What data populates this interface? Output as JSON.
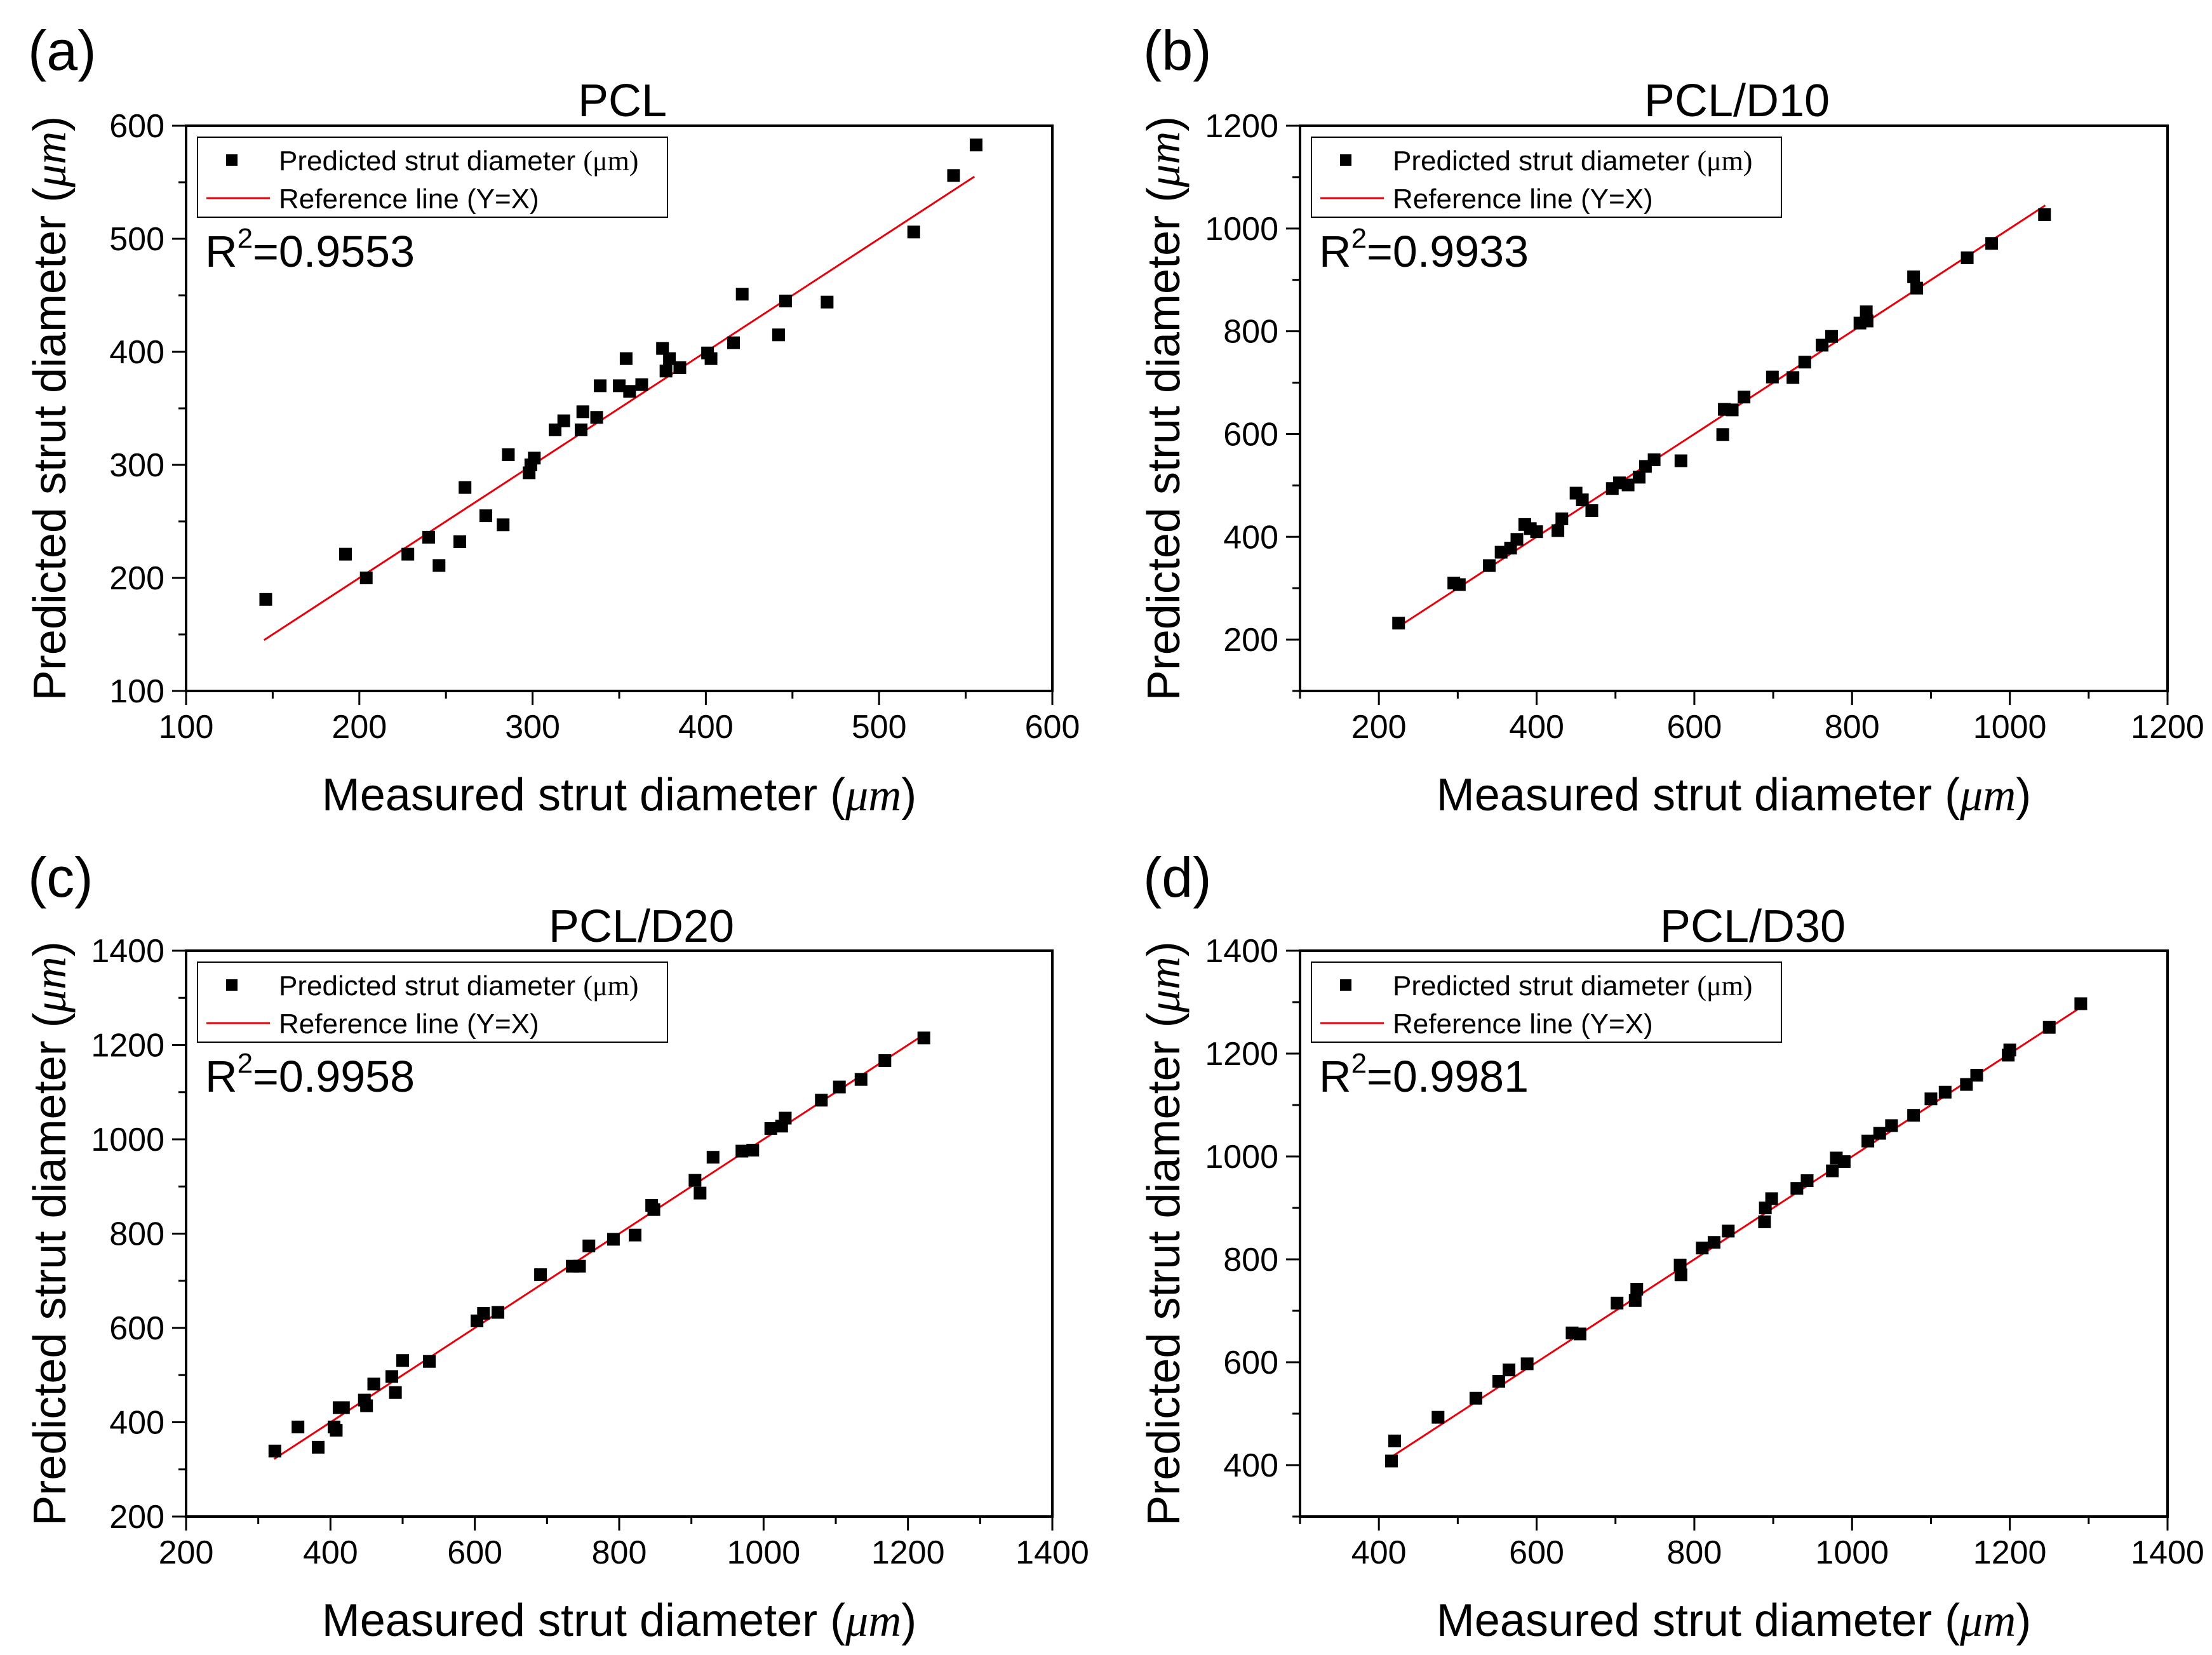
{
  "figure": {
    "colors": {
      "marker": "#000000",
      "reference_line": "#e8000b",
      "axes": "#000000",
      "background": "#ffffff"
    }
  },
  "chart_data": [
    {
      "type": "scatter",
      "panel_label": "(a)",
      "title": "PCL",
      "xlabel": "Measured strut diameter",
      "ylabel": "Predicted strut diameter",
      "unit": "μm",
      "xlim": [
        100,
        600
      ],
      "ylim": [
        100,
        600
      ],
      "xticks": [
        100,
        200,
        300,
        400,
        500,
        600
      ],
      "yticks": [
        100,
        200,
        300,
        400,
        500,
        600
      ],
      "reference_line": [
        145,
        555
      ],
      "legend": {
        "position": "top-left",
        "marker_label": "Predicted strut diameter",
        "marker_unit": "(μm)",
        "line_label": "Reference line (Y=X)"
      },
      "r2_prefix": "R",
      "r2_exp": "2",
      "r2_value": "=0.9553",
      "points": [
        [
          146,
          181
        ],
        [
          192,
          221
        ],
        [
          204,
          200
        ],
        [
          228,
          221
        ],
        [
          240,
          236
        ],
        [
          246,
          211
        ],
        [
          258,
          232
        ],
        [
          261,
          280
        ],
        [
          273,
          255
        ],
        [
          283,
          247
        ],
        [
          286,
          309
        ],
        [
          298,
          293
        ],
        [
          299,
          300
        ],
        [
          301,
          306
        ],
        [
          313,
          331
        ],
        [
          318,
          339
        ],
        [
          328,
          331
        ],
        [
          329,
          347
        ],
        [
          337,
          342
        ],
        [
          339,
          370
        ],
        [
          350,
          370
        ],
        [
          354,
          394
        ],
        [
          356,
          365
        ],
        [
          363,
          371
        ],
        [
          375,
          403
        ],
        [
          377,
          383
        ],
        [
          379,
          394
        ],
        [
          385,
          386
        ],
        [
          401,
          399
        ],
        [
          403,
          394
        ],
        [
          416,
          408
        ],
        [
          421,
          451
        ],
        [
          442,
          415
        ],
        [
          446,
          445
        ],
        [
          470,
          444
        ],
        [
          520,
          506
        ],
        [
          543,
          556
        ],
        [
          556,
          583
        ]
      ]
    },
    {
      "type": "scatter",
      "panel_label": "(b)",
      "title": "PCL/D10",
      "xlabel": "Measured strut diameter",
      "ylabel": "Predicted strut diameter",
      "unit": "μm",
      "xlim": [
        100,
        1200
      ],
      "ylim": [
        100,
        1200
      ],
      "xticks": [
        200,
        400,
        600,
        800,
        1000,
        1200
      ],
      "yticks": [
        200,
        400,
        600,
        800,
        1000,
        1200
      ],
      "reference_line": [
        222,
        1045
      ],
      "legend": {
        "position": "top-left",
        "marker_label": "Predicted strut diameter",
        "marker_unit": "(μm)",
        "line_label": "Reference line (Y=X)"
      },
      "r2_prefix": "R",
      "r2_exp": "2",
      "r2_value": "=0.9933",
      "points": [
        [
          225,
          232
        ],
        [
          295,
          310
        ],
        [
          302,
          307
        ],
        [
          340,
          344
        ],
        [
          355,
          370
        ],
        [
          367,
          378
        ],
        [
          375,
          395
        ],
        [
          385,
          424
        ],
        [
          392,
          416
        ],
        [
          400,
          410
        ],
        [
          427,
          412
        ],
        [
          432,
          435
        ],
        [
          450,
          485
        ],
        [
          458,
          472
        ],
        [
          470,
          451
        ],
        [
          496,
          494
        ],
        [
          505,
          505
        ],
        [
          516,
          501
        ],
        [
          530,
          516
        ],
        [
          538,
          537
        ],
        [
          549,
          550
        ],
        [
          583,
          548
        ],
        [
          636,
          599
        ],
        [
          638,
          648
        ],
        [
          648,
          647
        ],
        [
          663,
          672
        ],
        [
          699,
          711
        ],
        [
          725,
          710
        ],
        [
          740,
          740
        ],
        [
          762,
          773
        ],
        [
          774,
          790
        ],
        [
          810,
          816
        ],
        [
          818,
          838
        ],
        [
          819,
          820
        ],
        [
          878,
          906
        ],
        [
          882,
          884
        ],
        [
          946,
          943
        ],
        [
          977,
          971
        ],
        [
          1044,
          1027
        ]
      ]
    },
    {
      "type": "scatter",
      "panel_label": "(c)",
      "title": "PCL/D20",
      "xlabel": "Measured strut diameter",
      "ylabel": "Predicted strut diameter",
      "unit": "μm",
      "xlim": [
        200,
        1400
      ],
      "ylim": [
        200,
        1400
      ],
      "xticks": [
        200,
        400,
        600,
        800,
        1000,
        1200,
        1400
      ],
      "yticks": [
        200,
        400,
        600,
        800,
        1000,
        1200,
        1400
      ],
      "reference_line": [
        322,
        1222
      ],
      "legend": {
        "position": "top-left",
        "marker_label": "Predicted strut diameter",
        "marker_unit": "(μm)",
        "line_label": "Reference line (Y=X)"
      },
      "r2_prefix": "R",
      "r2_exp": "2",
      "r2_value": "=0.9958",
      "points": [
        [
          323,
          339
        ],
        [
          355,
          390
        ],
        [
          383,
          347
        ],
        [
          405,
          390
        ],
        [
          408,
          383
        ],
        [
          412,
          431
        ],
        [
          418,
          431
        ],
        [
          447,
          447
        ],
        [
          450,
          435
        ],
        [
          460,
          481
        ],
        [
          485,
          497
        ],
        [
          490,
          463
        ],
        [
          500,
          531
        ],
        [
          537,
          529
        ],
        [
          603,
          615
        ],
        [
          612,
          631
        ],
        [
          632,
          633
        ],
        [
          691,
          713
        ],
        [
          735,
          731
        ],
        [
          745,
          731
        ],
        [
          758,
          774
        ],
        [
          792,
          788
        ],
        [
          822,
          797
        ],
        [
          845,
          860
        ],
        [
          848,
          851
        ],
        [
          905,
          913
        ],
        [
          912,
          886
        ],
        [
          930,
          962
        ],
        [
          970,
          975
        ],
        [
          985,
          977
        ],
        [
          1010,
          1023
        ],
        [
          1025,
          1028
        ],
        [
          1030,
          1045
        ],
        [
          1080,
          1083
        ],
        [
          1105,
          1111
        ],
        [
          1135,
          1127
        ],
        [
          1168,
          1167
        ],
        [
          1222,
          1215
        ]
      ]
    },
    {
      "type": "scatter",
      "panel_label": "(d)",
      "title": "PCL/D30",
      "xlabel": "Measured strut diameter",
      "ylabel": "Predicted strut diameter",
      "unit": "μm",
      "xlim": [
        300,
        1400
      ],
      "ylim": [
        300,
        1400
      ],
      "xticks": [
        400,
        600,
        800,
        1000,
        1200,
        1400
      ],
      "yticks": [
        400,
        600,
        800,
        1000,
        1200,
        1400
      ],
      "reference_line": [
        410,
        1290
      ],
      "legend": {
        "position": "top-left",
        "marker_label": "Predicted strut diameter",
        "marker_unit": "(μm)",
        "line_label": "Reference line (Y=X)"
      },
      "r2_prefix": "R",
      "r2_exp": "2",
      "r2_value": "=0.9981",
      "points": [
        [
          416,
          408
        ],
        [
          420,
          447
        ],
        [
          475,
          493
        ],
        [
          523,
          530
        ],
        [
          552,
          563
        ],
        [
          565,
          585
        ],
        [
          588,
          597
        ],
        [
          645,
          657
        ],
        [
          655,
          655
        ],
        [
          702,
          715
        ],
        [
          725,
          720
        ],
        [
          727,
          742
        ],
        [
          782,
          789
        ],
        [
          783,
          770
        ],
        [
          810,
          822
        ],
        [
          825,
          833
        ],
        [
          843,
          855
        ],
        [
          889,
          873
        ],
        [
          890,
          900
        ],
        [
          898,
          918
        ],
        [
          930,
          938
        ],
        [
          943,
          953
        ],
        [
          975,
          972
        ],
        [
          980,
          997
        ],
        [
          990,
          990
        ],
        [
          1020,
          1030
        ],
        [
          1035,
          1045
        ],
        [
          1050,
          1060
        ],
        [
          1078,
          1080
        ],
        [
          1100,
          1112
        ],
        [
          1118,
          1125
        ],
        [
          1145,
          1140
        ],
        [
          1158,
          1158
        ],
        [
          1198,
          1197
        ],
        [
          1200,
          1207
        ],
        [
          1250,
          1251
        ],
        [
          1290,
          1297
        ]
      ]
    }
  ]
}
